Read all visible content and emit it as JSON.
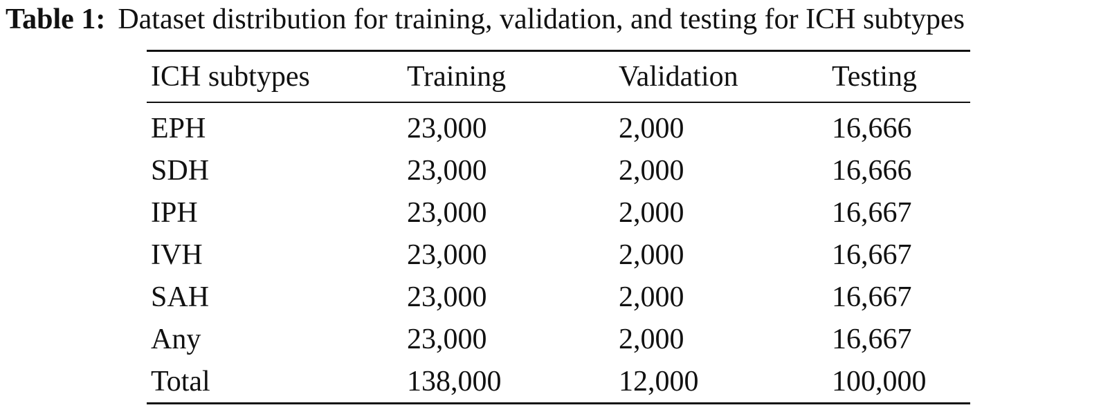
{
  "caption": {
    "label": "Table 1:",
    "text": "Dataset distribution for training, validation, and testing for ICH subtypes"
  },
  "table": {
    "headers": [
      "ICH subtypes",
      "Training",
      "Validation",
      "Testing"
    ],
    "rows": [
      [
        "EPH",
        "23,000",
        "2,000",
        "16,666"
      ],
      [
        "SDH",
        "23,000",
        "2,000",
        "16,666"
      ],
      [
        "IPH",
        "23,000",
        "2,000",
        "16,667"
      ],
      [
        "IVH",
        "23,000",
        "2,000",
        "16,667"
      ],
      [
        "SAH",
        "23,000",
        "2,000",
        "16,667"
      ],
      [
        "Any",
        "23,000",
        "2,000",
        "16,667"
      ],
      [
        "Total",
        "138,000",
        "12,000",
        "100,000"
      ]
    ]
  }
}
